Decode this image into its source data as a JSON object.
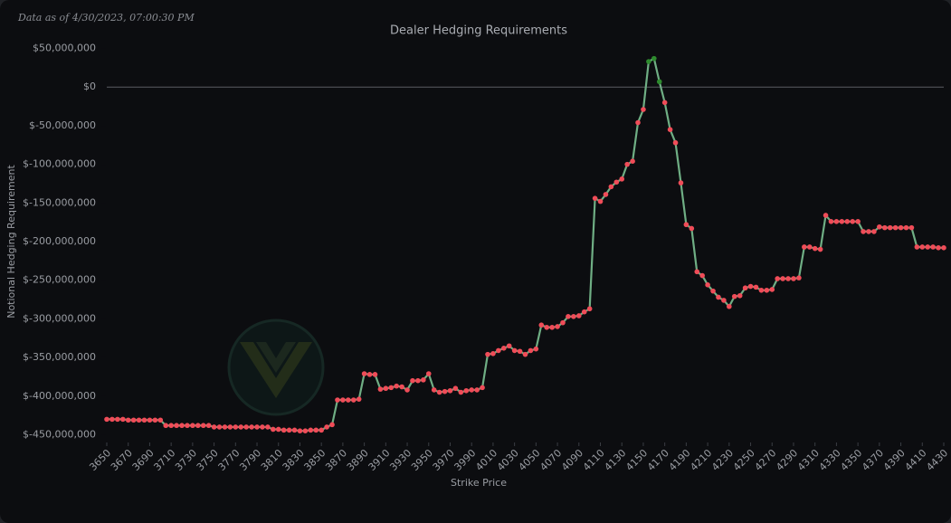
{
  "chart_data": {
    "type": "line",
    "title": "Dealer Hedging Requirements",
    "annotation": "Data as of 4/30/2023, 07:00:30 PM",
    "x_label": "Strike Price",
    "y_label": "Notional Hedging Requirement",
    "line_color": "#6fae84",
    "positive_color": "#2e8b2e",
    "negative_color": "#f04c58",
    "zero_line": true,
    "xlim": [
      3650,
      4430
    ],
    "ylim": [
      -460000000,
      60000000
    ],
    "xticks": [
      3650,
      3670,
      3690,
      3710,
      3730,
      3750,
      3770,
      3790,
      3810,
      3830,
      3850,
      3870,
      3890,
      3910,
      3930,
      3950,
      3970,
      3990,
      4010,
      4030,
      4050,
      4070,
      4090,
      4110,
      4130,
      4150,
      4170,
      4190,
      4210,
      4230,
      4250,
      4270,
      4290,
      4310,
      4330,
      4350,
      4370,
      4390,
      4410,
      4430
    ],
    "yticks": [
      {
        "value": 50000000,
        "label": "$50,000,000"
      },
      {
        "value": 0,
        "label": "$0"
      },
      {
        "value": -50000000,
        "label": "$-50,000,000"
      },
      {
        "value": -100000000,
        "label": "$-100,000,000"
      },
      {
        "value": -150000000,
        "label": "$-150,000,000"
      },
      {
        "value": -200000000,
        "label": "$-200,000,000"
      },
      {
        "value": -250000000,
        "label": "$-250,000,000"
      },
      {
        "value": -300000000,
        "label": "$-300,000,000"
      },
      {
        "value": -350000000,
        "label": "$-350,000,000"
      },
      {
        "value": -400000000,
        "label": "$-400,000,000"
      },
      {
        "value": -450000000,
        "label": "$-450,000,000"
      }
    ],
    "x": [
      3650,
      3655,
      3660,
      3665,
      3670,
      3675,
      3680,
      3685,
      3690,
      3695,
      3700,
      3705,
      3710,
      3715,
      3720,
      3725,
      3730,
      3735,
      3740,
      3745,
      3750,
      3755,
      3760,
      3765,
      3770,
      3775,
      3780,
      3785,
      3790,
      3795,
      3800,
      3805,
      3810,
      3815,
      3820,
      3825,
      3830,
      3835,
      3840,
      3845,
      3850,
      3855,
      3860,
      3865,
      3870,
      3875,
      3880,
      3885,
      3890,
      3895,
      3900,
      3905,
      3910,
      3915,
      3920,
      3925,
      3930,
      3935,
      3940,
      3945,
      3950,
      3955,
      3960,
      3965,
      3970,
      3975,
      3980,
      3985,
      3990,
      3995,
      4000,
      4005,
      4010,
      4015,
      4020,
      4025,
      4030,
      4035,
      4040,
      4045,
      4050,
      4055,
      4060,
      4065,
      4070,
      4075,
      4080,
      4085,
      4090,
      4095,
      4100,
      4105,
      4110,
      4115,
      4120,
      4125,
      4130,
      4135,
      4140,
      4145,
      4150,
      4155,
      4160,
      4165,
      4170,
      4175,
      4180,
      4185,
      4190,
      4195,
      4200,
      4205,
      4210,
      4215,
      4220,
      4225,
      4230,
      4235,
      4240,
      4245,
      4250,
      4255,
      4260,
      4265,
      4270,
      4275,
      4280,
      4285,
      4290,
      4295,
      4300,
      4305,
      4310,
      4315,
      4320,
      4325,
      4330,
      4335,
      4340,
      4345,
      4350,
      4355,
      4360,
      4365,
      4370,
      4375,
      4380,
      4385,
      4390,
      4395,
      4400,
      4405,
      4410,
      4415,
      4420,
      4425,
      4430
    ],
    "values": [
      -430000000,
      -430000000,
      -430000000,
      -430000000,
      -431000000,
      -431000000,
      -431000000,
      -431000000,
      -431000000,
      -431000000,
      -431000000,
      -438000000,
      -438000000,
      -438000000,
      -438000000,
      -438000000,
      -438000000,
      -438000000,
      -438000000,
      -438000000,
      -440000000,
      -440000000,
      -440000000,
      -440000000,
      -440000000,
      -440000000,
      -440000000,
      -440000000,
      -440000000,
      -440000000,
      -440000000,
      -443000000,
      -443000000,
      -444000000,
      -444000000,
      -444000000,
      -445000000,
      -445000000,
      -444000000,
      -444000000,
      -444000000,
      -440000000,
      -437000000,
      -405000000,
      -405000000,
      -405000000,
      -405000000,
      -404000000,
      -371000000,
      -372000000,
      -372000000,
      -391000000,
      -390000000,
      -389000000,
      -387000000,
      -388000000,
      -392000000,
      -380000000,
      -380000000,
      -379000000,
      -371000000,
      -392000000,
      -395000000,
      -394000000,
      -393000000,
      -390000000,
      -395000000,
      -393000000,
      -392000000,
      -392000000,
      -389000000,
      -346000000,
      -345000000,
      -341000000,
      -338000000,
      -335000000,
      -341000000,
      -342000000,
      -346000000,
      -341000000,
      -339000000,
      -308000000,
      -311000000,
      -311000000,
      -310000000,
      -305000000,
      -297000000,
      -297000000,
      -296000000,
      -291000000,
      -287000000,
      -144000000,
      -148000000,
      -139000000,
      -129000000,
      -123000000,
      -119000000,
      -100000000,
      -96000000,
      -46000000,
      -29000000,
      33000000,
      37000000,
      7000000,
      -20000000,
      -55000000,
      -72000000,
      -124000000,
      -178000000,
      -183000000,
      -239000000,
      -244000000,
      -256000000,
      -264000000,
      -272000000,
      -276000000,
      -284000000,
      -271000000,
      -270000000,
      -260000000,
      -258000000,
      -259000000,
      -263000000,
      -263000000,
      -262000000,
      -248000000,
      -248000000,
      -248000000,
      -248000000,
      -247000000,
      -207000000,
      -207000000,
      -209000000,
      -210000000,
      -166000000,
      -174000000,
      -174000000,
      -174000000,
      -174000000,
      -174000000,
      -174000000,
      -187000000,
      -187000000,
      -187000000,
      -181000000,
      -182000000,
      -182000000,
      -182000000,
      -182000000,
      -182000000,
      -182000000,
      -207000000,
      -207000000,
      -207000000,
      -207000000,
      -208000000,
      -208000000
    ]
  }
}
